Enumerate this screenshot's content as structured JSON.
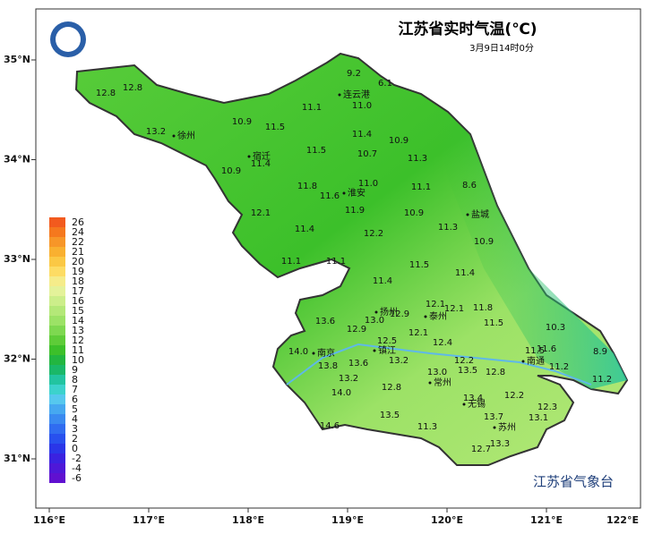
{
  "title": "江苏省实时气温(℃)",
  "subtitle": "3月9日14时0分",
  "footer": "江苏省气象台",
  "lon_ticks": [
    {
      "value": 116,
      "label": "116°E"
    },
    {
      "value": 117,
      "label": "117°E"
    },
    {
      "value": 118,
      "label": "118°E"
    },
    {
      "value": 119,
      "label": "119°E"
    },
    {
      "value": 120,
      "label": "120°E"
    },
    {
      "value": 121,
      "label": "121°E"
    },
    {
      "value": 122,
      "label": "122°E"
    }
  ],
  "lat_ticks": [
    {
      "value": 35,
      "label": "35°N"
    },
    {
      "value": 34,
      "label": "34°N"
    },
    {
      "value": 33,
      "label": "33°N"
    },
    {
      "value": 32,
      "label": "32°N"
    },
    {
      "value": 31,
      "label": "31°N"
    }
  ],
  "legend": [
    {
      "label": "26",
      "color": "#f25a1e"
    },
    {
      "label": "24",
      "color": "#f5781e"
    },
    {
      "label": "22",
      "color": "#f79628"
    },
    {
      "label": "21",
      "color": "#f9b030"
    },
    {
      "label": "20",
      "color": "#fbc844"
    },
    {
      "label": "19",
      "color": "#fddc64"
    },
    {
      "label": "18",
      "color": "#f5ec8a"
    },
    {
      "label": "17",
      "color": "#e4f29a"
    },
    {
      "label": "16",
      "color": "#ccee8a"
    },
    {
      "label": "15",
      "color": "#b4e878"
    },
    {
      "label": "14",
      "color": "#9ce266"
    },
    {
      "label": "13",
      "color": "#7ed850"
    },
    {
      "label": "12",
      "color": "#5ecc38"
    },
    {
      "label": "11",
      "color": "#3cc02a"
    },
    {
      "label": "10",
      "color": "#22b640"
    },
    {
      "label": "9",
      "color": "#1ab868"
    },
    {
      "label": "8",
      "color": "#22c4a0"
    },
    {
      "label": "7",
      "color": "#3cd2cc"
    },
    {
      "label": "6",
      "color": "#56c8ee"
    },
    {
      "label": "5",
      "color": "#46a8f0"
    },
    {
      "label": "4",
      "color": "#3a8af0"
    },
    {
      "label": "3",
      "color": "#306cf0"
    },
    {
      "label": "2",
      "color": "#2850ee"
    },
    {
      "label": "0",
      "color": "#2a36e8"
    },
    {
      "label": "-2",
      "color": "#3a22e0"
    },
    {
      "label": "-4",
      "color": "#4e18d8"
    },
    {
      "label": "-6",
      "color": "#6010d0"
    }
  ],
  "cities": [
    "徐州",
    "连云港",
    "宿迁",
    "淮安",
    "盐城",
    "扬州",
    "泰州",
    "南京",
    "镇江",
    "南通",
    "常州",
    "无锡",
    "苏州"
  ],
  "readings": [
    "12.8",
    "12.8",
    "10.9",
    "13.2",
    "11.5",
    "11.1",
    "9.2",
    "6.1",
    "11.0",
    "11.4",
    "10.9",
    "11.5",
    "10.7",
    "11.3",
    "11.4",
    "10.9",
    "11.8",
    "11.0",
    "11.1",
    "8.6",
    "11.6",
    "12.1",
    "11.9",
    "10.9",
    "11.3",
    "11.4",
    "12.2",
    "10.9",
    "11.1",
    "11.1",
    "11.5",
    "11.4",
    "11.4",
    "12.1",
    "12.1",
    "11.8",
    "12.9",
    "13.0",
    "13.6",
    "11.5",
    "10.3",
    "12.9",
    "12.1",
    "12.5",
    "12.4",
    "11.5",
    "11.6",
    "8.9",
    "14.0",
    "13.2",
    "12.2",
    "13.8",
    "13.6",
    "13.5",
    "12.8",
    "11.2",
    "13.0",
    "13.2",
    "12.8",
    "11.2",
    "14.0",
    "12.2",
    "13.4",
    "12.3",
    "13.7",
    "13.1",
    "13.5",
    "14.6",
    "11.3",
    "12.7",
    "13.3"
  ]
}
